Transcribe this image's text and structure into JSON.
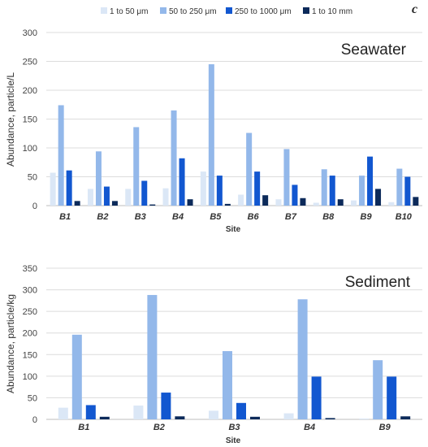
{
  "panel_label": "c",
  "colors": [
    "#dbe7f6",
    "#93b8ea",
    "#1257d0",
    "#0c2a5a"
  ],
  "legend": [
    "1 to 50 μm",
    "50 to 250 μm",
    "250 to 1000 μm",
    "1 to 10 mm"
  ],
  "chart_data": [
    {
      "type": "bar",
      "title": "Seawater",
      "xlabel": "Site",
      "ylabel": "Abundance, particle/L",
      "ylim": [
        0,
        300
      ],
      "yticks": [
        0,
        50,
        100,
        150,
        200,
        250,
        300
      ],
      "grid": true,
      "categories": [
        "B1",
        "B2",
        "B3",
        "B4",
        "B5",
        "B6",
        "B7",
        "B8",
        "B9",
        "B10"
      ],
      "series": [
        {
          "name": "1 to 50 μm",
          "values": [
            57,
            29,
            29,
            30,
            59,
            19,
            11,
            5,
            9,
            6
          ]
        },
        {
          "name": "50 to 250 μm",
          "values": [
            174,
            94,
            136,
            165,
            245,
            126,
            98,
            63,
            52,
            64
          ]
        },
        {
          "name": "250 to 1000 μm",
          "values": [
            61,
            33,
            43,
            82,
            52,
            59,
            36,
            52,
            85,
            50
          ]
        },
        {
          "name": "1 to 10 mm",
          "values": [
            8,
            8,
            2,
            11,
            3,
            18,
            13,
            11,
            29,
            15
          ]
        }
      ]
    },
    {
      "type": "bar",
      "title": "Sediment",
      "xlabel": "Site",
      "ylabel": "Abundance, particle/kg",
      "ylim": [
        0,
        350
      ],
      "yticks": [
        0,
        50,
        100,
        150,
        200,
        250,
        300,
        350
      ],
      "grid": true,
      "categories": [
        "B1",
        "B2",
        "B3",
        "B4",
        "B9"
      ],
      "series": [
        {
          "name": "1 to 50 μm",
          "values": [
            27,
            32,
            20,
            14,
            2
          ]
        },
        {
          "name": "50 to 250 μm",
          "values": [
            196,
            288,
            158,
            278,
            137
          ]
        },
        {
          "name": "250 to 1000 μm",
          "values": [
            33,
            62,
            38,
            99,
            99
          ]
        },
        {
          "name": "1 to 10 mm",
          "values": [
            6,
            7,
            6,
            3,
            7
          ]
        }
      ]
    }
  ]
}
